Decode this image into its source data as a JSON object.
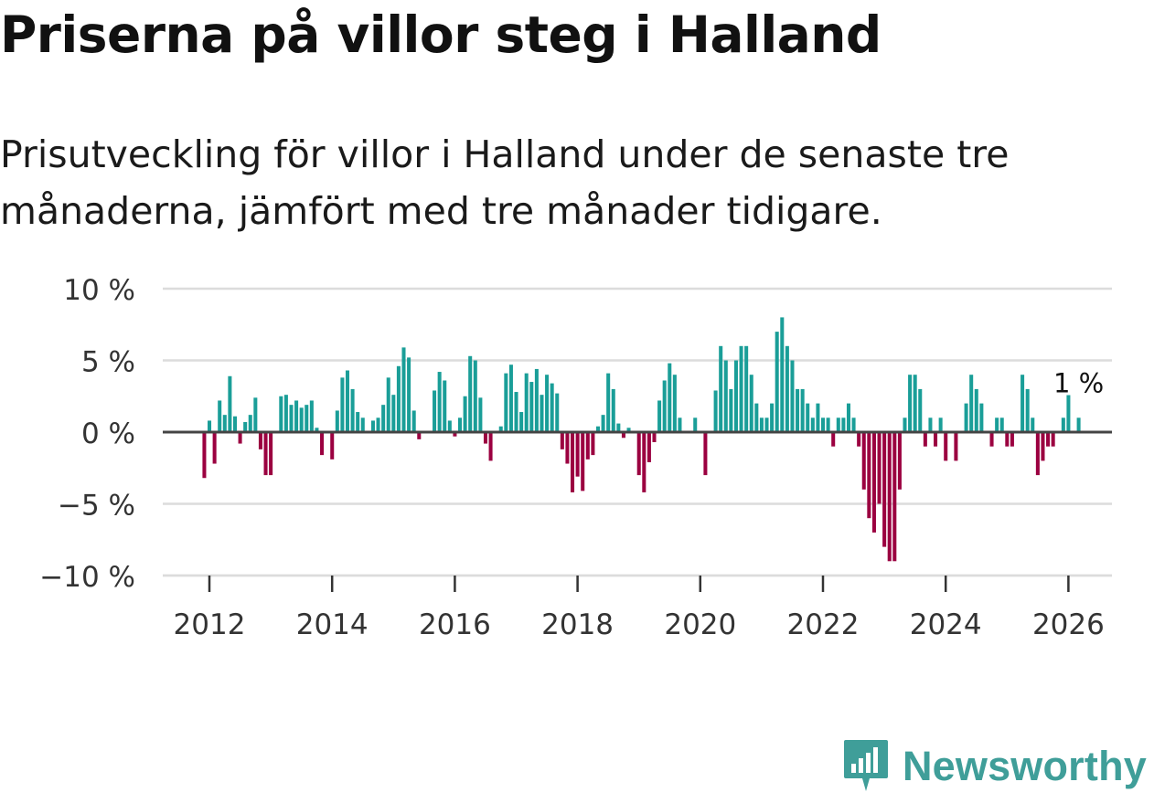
{
  "header": {
    "title": "Priserna på villor steg i Halland",
    "subtitle": "Prisutveckling för villor i Halland under de senaste tre månaderna, jämfört med tre månader tidigare."
  },
  "chart_data": {
    "type": "bar",
    "title": "Priserna på villor steg i Halland",
    "subtitle": "Prisutveckling för villor i Halland under de senaste tre månaderna, jämfört med tre månader tidigare.",
    "xlabel": "",
    "ylabel": "",
    "ylim": [
      -10,
      10
    ],
    "y_ticks": [
      10,
      5,
      0,
      -5,
      -10
    ],
    "y_tick_labels": [
      "10 %",
      "5 %",
      "0 %",
      "−5 %",
      "−10 %"
    ],
    "x_ticks": [
      2012,
      2014,
      2016,
      2018,
      2020,
      2022,
      2024,
      2026
    ],
    "x_tick_labels": [
      "2012",
      "2014",
      "2016",
      "2018",
      "2020",
      "2022",
      "2024",
      "2026"
    ],
    "x_start": 2011.917,
    "x_step_months": 1,
    "grid": true,
    "positive_color": "#1a9e98",
    "negative_color": "#9b0040",
    "annotation": {
      "label": "1 %",
      "points_to": "last"
    },
    "series": [
      {
        "name": "Prisutveckling",
        "values": [
          -3.2,
          0.8,
          -2.2,
          2.2,
          1.2,
          3.9,
          1.1,
          -0.8,
          0.7,
          1.2,
          2.4,
          -1.2,
          -3.0,
          -3.0,
          0,
          2.5,
          2.6,
          1.9,
          2.2,
          1.7,
          1.9,
          2.2,
          0.3,
          -1.6,
          0,
          -1.9,
          1.5,
          3.8,
          4.3,
          3.0,
          1.4,
          1.0,
          0,
          0.8,
          1.0,
          1.9,
          3.8,
          2.6,
          4.6,
          5.9,
          5.2,
          1.5,
          -0.5,
          0,
          0,
          2.9,
          4.2,
          3.6,
          0.8,
          -0.3,
          1.0,
          2.5,
          5.3,
          5.0,
          2.4,
          -0.8,
          -2.0,
          0,
          0.4,
          4.1,
          4.7,
          2.8,
          1.4,
          4.1,
          3.5,
          4.4,
          2.6,
          4.0,
          3.4,
          2.7,
          -1.2,
          -2.2,
          -4.2,
          -3.1,
          -4.1,
          -1.9,
          -1.6,
          0.4,
          1.2,
          4.1,
          3.0,
          0.6,
          -0.4,
          0.3,
          0,
          -3.0,
          -4.2,
          -2.1,
          -0.7,
          2.2,
          3.6,
          4.8,
          4.0,
          1.0,
          0,
          0,
          1.0,
          0,
          -3.0,
          0,
          2.9,
          6.0,
          5.0,
          3.0,
          5.0,
          6.0,
          6.0,
          4.0,
          2.0,
          1.0,
          1.0,
          2.0,
          7.0,
          8.0,
          6.0,
          5.0,
          3.0,
          3.0,
          2.0,
          1.0,
          2.0,
          1.0,
          1.0,
          -1.0,
          1.0,
          1.0,
          2.0,
          1.0,
          -1.0,
          -4.0,
          -6.0,
          -7.0,
          -5.0,
          -8.0,
          -9.0,
          -9.0,
          -4.0,
          1.0,
          4.0,
          4.0,
          3.0,
          -1.0,
          1.0,
          -1.0,
          1.0,
          -2.0,
          0,
          -2.0,
          0,
          2.0,
          4.0,
          3.0,
          2.0,
          0,
          -1.0,
          1.0,
          1.0,
          -1.0,
          -1.0,
          0,
          4.0,
          3.0,
          1.0,
          -3.0,
          -2.0,
          -1.0,
          -1.0,
          0,
          1.0,
          2.7,
          0,
          1.0
        ]
      }
    ]
  },
  "brand": {
    "name": "Newsworthy",
    "icon": "newsworthy-chart-icon"
  }
}
